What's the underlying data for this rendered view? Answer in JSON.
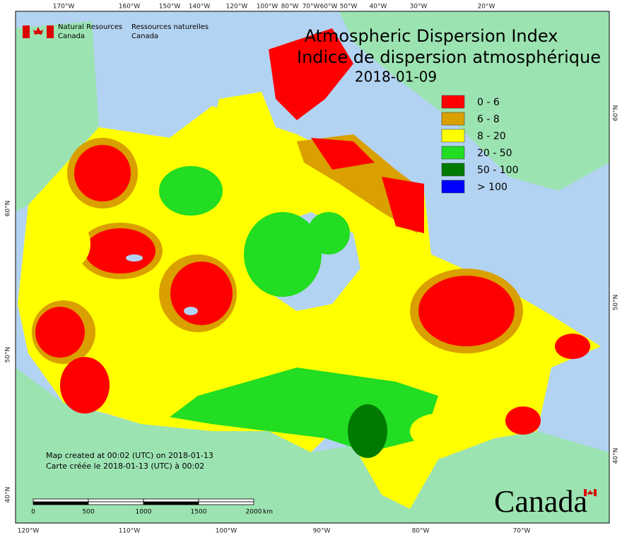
{
  "header": {
    "agency_en": [
      "Natural Resources",
      "Canada"
    ],
    "agency_fr": [
      "Ressources naturelles",
      "Canada"
    ]
  },
  "title": [
    "Atmospheric Dispersion Index",
    "Indice de dispersion atmosphérique",
    "2018-01-09"
  ],
  "legend": [
    {
      "label": "0 - 6",
      "color": "#ff0000"
    },
    {
      "label": "6 - 8",
      "color": "#d9a000"
    },
    {
      "label": "8 - 20",
      "color": "#ffff00"
    },
    {
      "label": "20 - 50",
      "color": "#22dd22"
    },
    {
      "label": "50 - 100",
      "color": "#007a00"
    },
    {
      "label": "> 100",
      "color": "#0000ff"
    }
  ],
  "credits": [
    "Map created at 00:02 (UTC) on 2018-01-13",
    "Carte créée le 2018-01-13 (UTC) à 00:02"
  ],
  "scale_bar": {
    "labels": [
      "0",
      "500",
      "1000",
      "1500",
      "2000"
    ],
    "unit": "km"
  },
  "top_ticks": [
    "170°W",
    "160°W",
    "150°W",
    "140°W",
    "120°W",
    "100°W",
    "80°W",
    "70°W",
    "60°W",
    "50°W",
    "40°W",
    "30°W",
    "20°W"
  ],
  "bottom_ticks": [
    "120°W",
    "110°W",
    "100°W",
    "90°W",
    "80°W",
    "70°W"
  ],
  "left_ticks": [
    "60°N",
    "50°N",
    "40°N"
  ],
  "right_ticks": [
    "60°N",
    "50°N",
    "40°N"
  ],
  "wordmark": "Canada"
}
